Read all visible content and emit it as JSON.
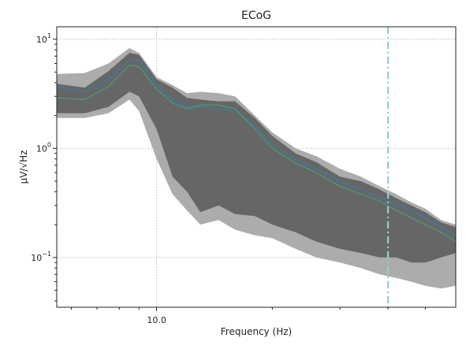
{
  "chart_data": {
    "type": "area",
    "title": "ECoG",
    "xlabel": "Frequency (Hz)",
    "ylabel": "µV/√Hz",
    "xscale": "log",
    "yscale": "log",
    "xlim": [
      5.5,
      60
    ],
    "ylim": [
      0.035,
      13
    ],
    "grid": true,
    "x_tick_labels": [
      {
        "value": 10,
        "label": "10.0"
      }
    ],
    "y_tick_labels": [
      {
        "value": 10,
        "base": "10",
        "exp": "1"
      },
      {
        "value": 1,
        "base": "10",
        "exp": "0"
      },
      {
        "value": 0.1,
        "base": "10",
        "exp": "−1"
      }
    ],
    "vline": {
      "x": 40,
      "style": "dash-dot",
      "color": "#8ecfd3"
    },
    "colors": {
      "outer_band": "#acacac",
      "inner_band": "#666666",
      "mean_line": "#3a7ea3",
      "median_line": "#4a9b7a"
    },
    "series": [
      {
        "role": "outer_band",
        "x": [
          5.5,
          6.5,
          7.5,
          8.5,
          9.0,
          10.0,
          11.0,
          12.0,
          13.0,
          14.5,
          16.0,
          18.0,
          20.0,
          23.0,
          26.0,
          30.0,
          34.0,
          38.0,
          42.0,
          46.0,
          50.0,
          55.0,
          60.0
        ],
        "upper": [
          4.8,
          4.9,
          6.0,
          8.3,
          7.5,
          4.5,
          3.8,
          3.2,
          3.3,
          3.2,
          3.0,
          2.0,
          1.4,
          1.0,
          0.85,
          0.65,
          0.55,
          0.45,
          0.38,
          0.32,
          0.28,
          0.22,
          0.2
        ],
        "lower": [
          1.9,
          1.9,
          2.1,
          2.8,
          2.2,
          0.8,
          0.38,
          0.27,
          0.2,
          0.22,
          0.18,
          0.16,
          0.15,
          0.12,
          0.1,
          0.09,
          0.08,
          0.07,
          0.065,
          0.06,
          0.055,
          0.052,
          0.055
        ]
      },
      {
        "role": "inner_band",
        "x": [
          5.5,
          6.5,
          7.5,
          8.5,
          9.0,
          10.0,
          11.0,
          12.0,
          13.0,
          14.5,
          16.0,
          18.0,
          20.0,
          23.0,
          26.0,
          30.0,
          34.0,
          38.0,
          42.0,
          46.0,
          50.0,
          55.0,
          60.0
        ],
        "upper": [
          3.9,
          3.6,
          5.1,
          7.5,
          7.2,
          4.3,
          3.6,
          2.9,
          2.8,
          2.7,
          2.7,
          1.9,
          1.3,
          0.9,
          0.75,
          0.55,
          0.5,
          0.42,
          0.35,
          0.3,
          0.26,
          0.21,
          0.19
        ],
        "lower": [
          2.1,
          2.1,
          2.4,
          3.3,
          3.0,
          1.5,
          0.55,
          0.4,
          0.26,
          0.3,
          0.25,
          0.24,
          0.2,
          0.17,
          0.14,
          0.12,
          0.11,
          0.1,
          0.1,
          0.09,
          0.09,
          0.1,
          0.11
        ]
      },
      {
        "role": "mean_line",
        "x": [
          5.5,
          6.5,
          7.5,
          8.5,
          9.0,
          10.0,
          11.0,
          12.0,
          13.0,
          14.5,
          16.0,
          18.0,
          20.0,
          23.0,
          26.0,
          30.0,
          34.0,
          38.0,
          42.0,
          46.0,
          50.0,
          55.0,
          60.0
        ],
        "y": [
          3.7,
          3.3,
          4.3,
          6.5,
          6.4,
          3.8,
          2.8,
          2.4,
          2.4,
          2.3,
          2.2,
          1.6,
          1.1,
          0.78,
          0.65,
          0.5,
          0.42,
          0.36,
          0.3,
          0.27,
          0.23,
          0.19,
          0.16
        ]
      },
      {
        "role": "median_line",
        "x": [
          5.5,
          6.5,
          7.5,
          8.5,
          9.0,
          10.0,
          11.0,
          12.0,
          13.0,
          14.5,
          16.0,
          18.0,
          20.0,
          23.0,
          26.0,
          30.0,
          34.0,
          38.0,
          42.0,
          46.0,
          50.0,
          55.0,
          60.0
        ],
        "y": [
          2.9,
          2.8,
          3.7,
          5.8,
          5.6,
          3.5,
          2.6,
          2.3,
          2.5,
          2.5,
          2.3,
          1.5,
          1.0,
          0.73,
          0.6,
          0.45,
          0.38,
          0.33,
          0.27,
          0.23,
          0.2,
          0.17,
          0.14
        ]
      }
    ]
  }
}
